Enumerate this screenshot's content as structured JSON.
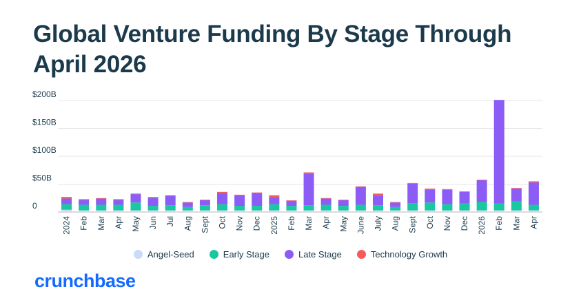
{
  "title": "Global Venture Funding By Stage Through April 2026",
  "logo_text": "crunchbase",
  "colors": {
    "angel_seed": "#c9dafa",
    "early_stage": "#18c8a0",
    "late_stage": "#8b5cf6",
    "technology_growth": "#f25c5c",
    "grid": "#e4e4e4",
    "text": "#1b3a4b",
    "brand": "#146aff"
  },
  "chart_data": {
    "type": "bar",
    "stacked": true,
    "title": "Global Venture Funding By Stage Through April 2026",
    "ylim": [
      0,
      200
    ],
    "y_ticks": [
      {
        "value": 0,
        "label": "0"
      },
      {
        "value": 50,
        "label": "$50B"
      },
      {
        "value": 100,
        "label": "$100B"
      },
      {
        "value": 150,
        "label": "$150B"
      },
      {
        "value": 200,
        "label": "$200B"
      }
    ],
    "grid": true,
    "legend_position": "bottom",
    "categories": [
      "2024",
      "Feb",
      "Mar",
      "Apr",
      "May",
      "Jun",
      "Jul",
      "Aug",
      "Sept",
      "Oct",
      "Nov",
      "Dec",
      "2025",
      "Feb",
      "Mar",
      "Apr",
      "May",
      "June",
      "July",
      "Aug",
      "Sept",
      "Oct",
      "Nov",
      "Dec",
      "2026",
      "Feb",
      "Mar",
      "Apr"
    ],
    "series": [
      {
        "name": "Angel-Seed",
        "color": "#c9dafa",
        "values": [
          4,
          3,
          3,
          3,
          3,
          3,
          3,
          3,
          3,
          3,
          3,
          3,
          3,
          3,
          3,
          3,
          3,
          3,
          3,
          3,
          3,
          3,
          3,
          3,
          3,
          3,
          3,
          3
        ]
      },
      {
        "name": "Early Stage",
        "color": "#18c8a0",
        "values": [
          10,
          10,
          10,
          10,
          14,
          8,
          9,
          6,
          9,
          11,
          8,
          8,
          11,
          8,
          9,
          10,
          8,
          10,
          9,
          6,
          13,
          14,
          11,
          12,
          15,
          12,
          16,
          10
        ]
      },
      {
        "name": "Late Stage",
        "color": "#8b5cf6",
        "values": [
          10,
          9,
          11,
          9,
          15,
          14,
          17,
          8,
          9,
          20,
          18,
          23,
          13,
          9,
          57,
          11,
          10,
          32,
          18,
          8,
          35,
          23,
          26,
          21,
          39,
          186,
          23,
          40
        ]
      },
      {
        "name": "Technology Growth",
        "color": "#f25c5c",
        "values": [
          3,
          1,
          1,
          1,
          1,
          2,
          1,
          1,
          1,
          2,
          2,
          1,
          3,
          1,
          2,
          1,
          1,
          1,
          3,
          1,
          1,
          2,
          1,
          1,
          1,
          0,
          1,
          2
        ]
      }
    ]
  }
}
